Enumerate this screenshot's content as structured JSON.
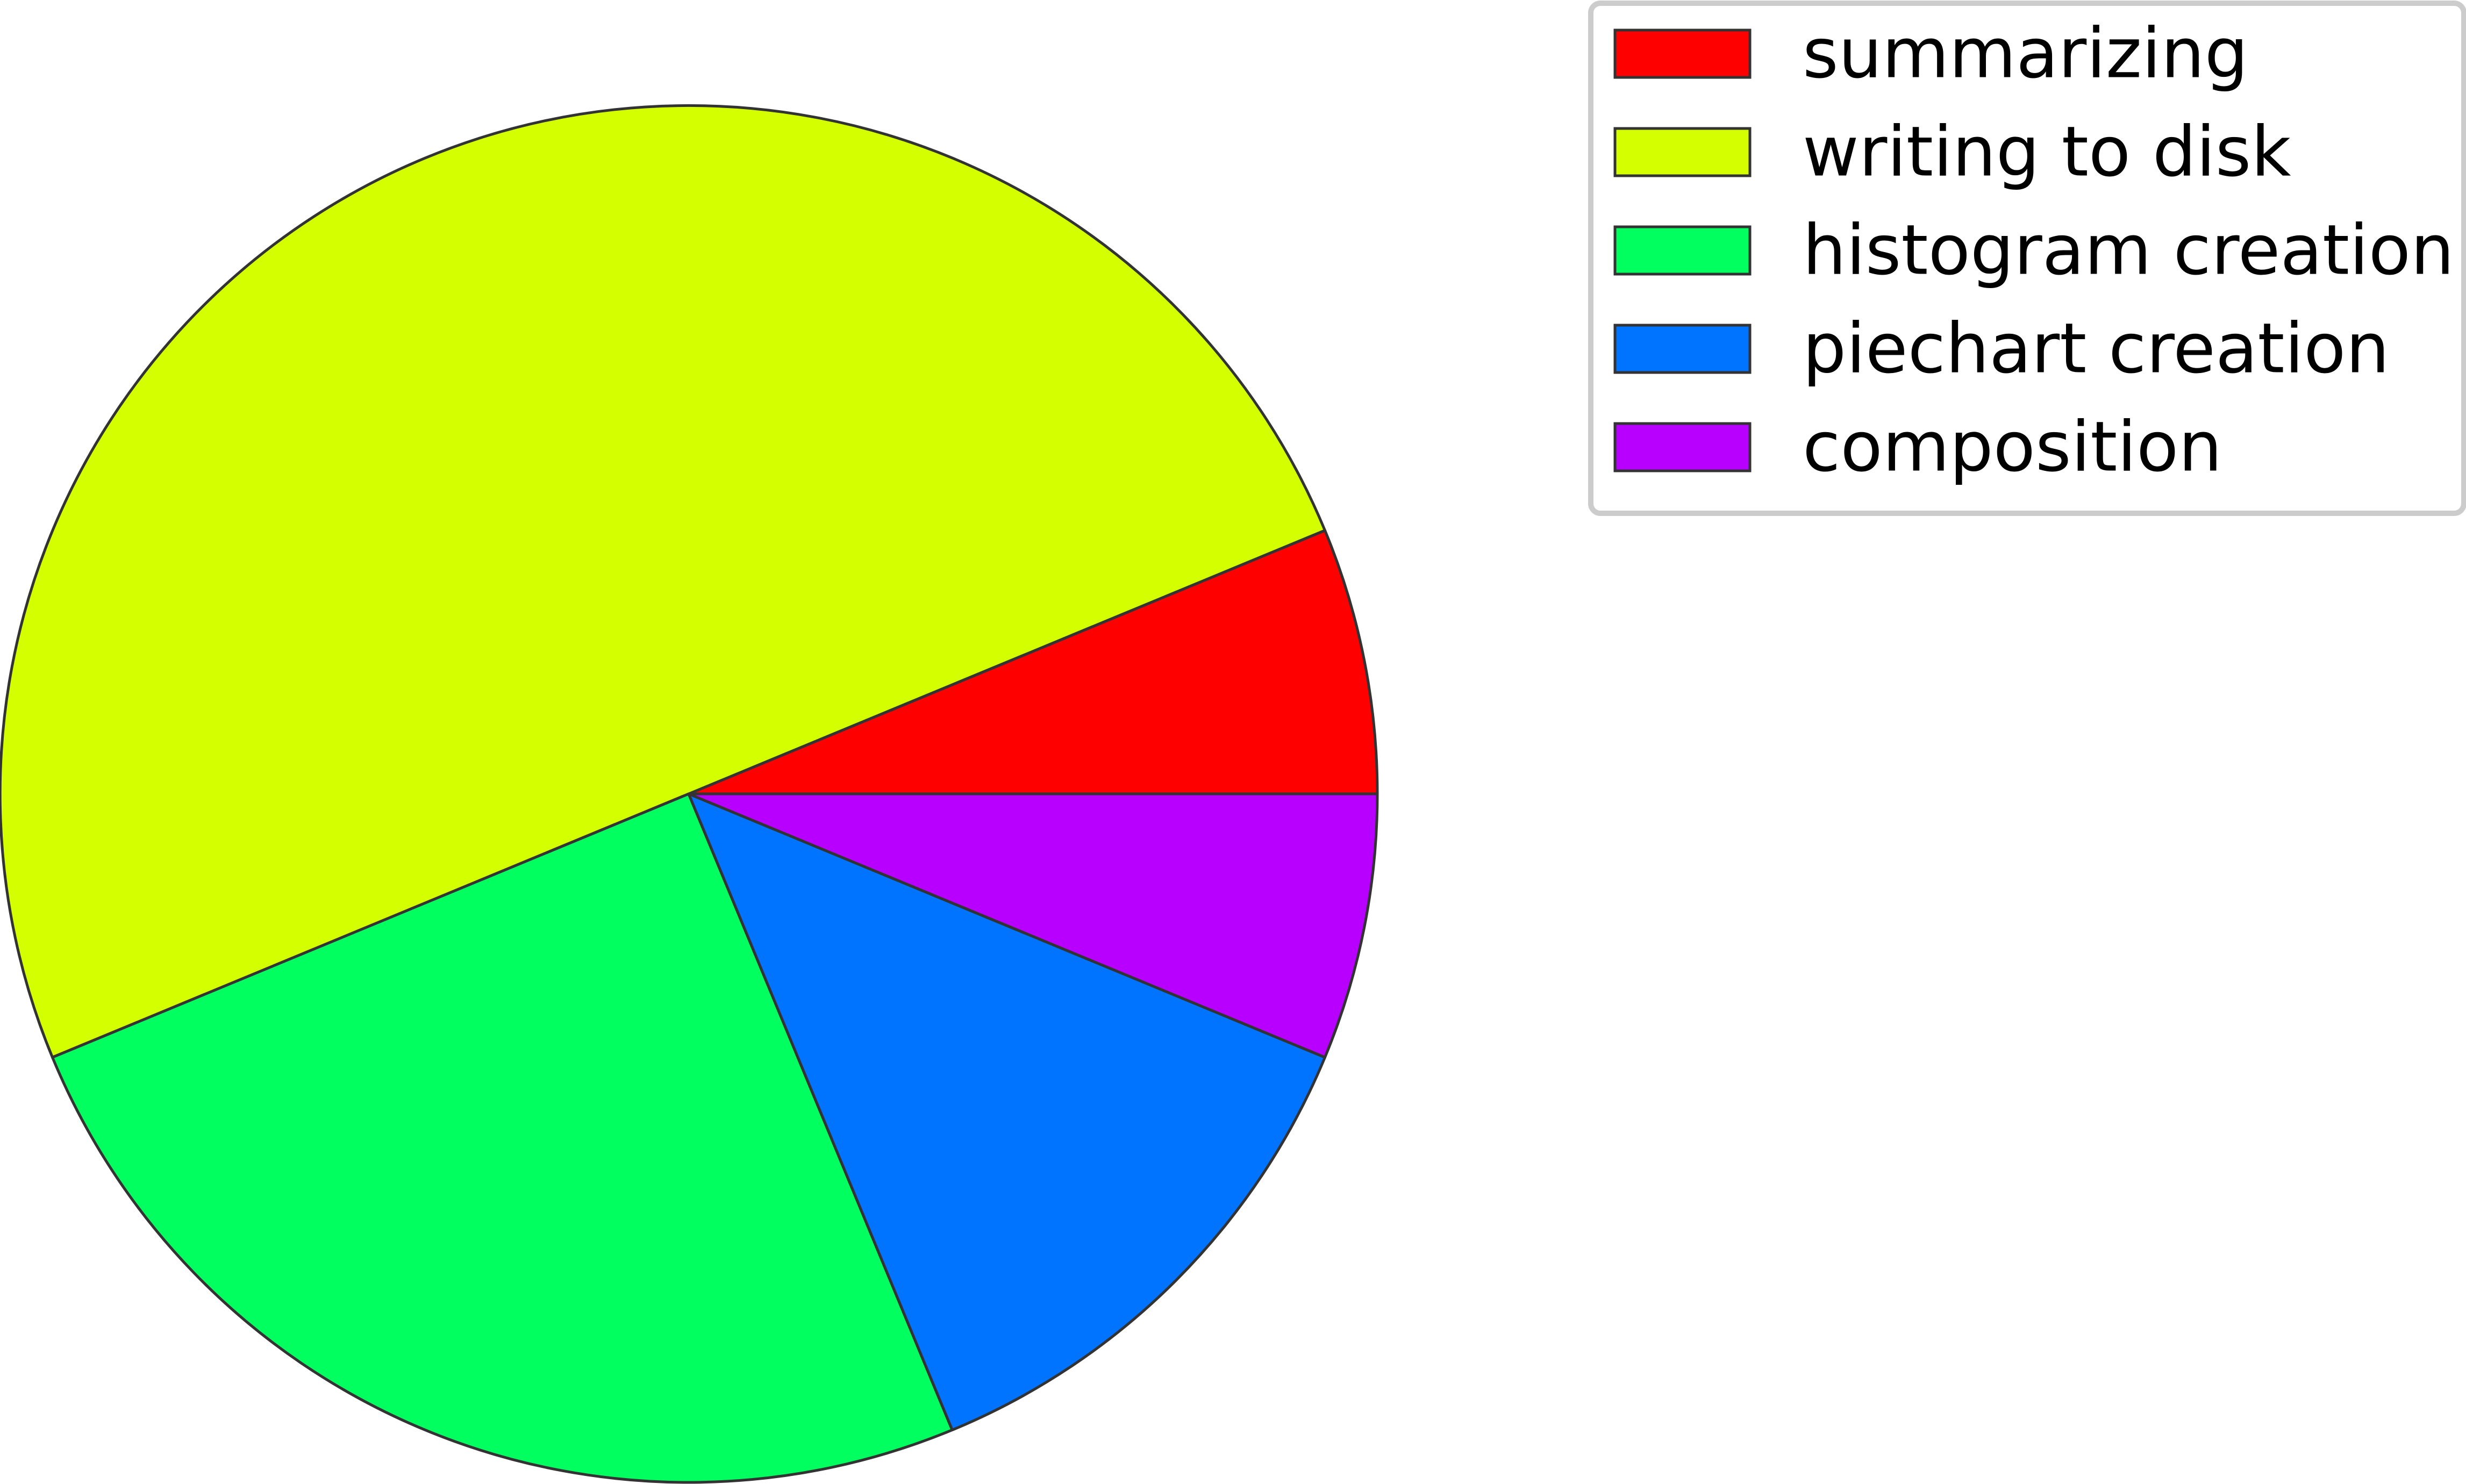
{
  "chart_data": {
    "type": "pie",
    "title": "",
    "start_angle_deg": 0,
    "direction": "counterclockwise",
    "legend": "top-right",
    "slices": [
      {
        "label": "summarizing",
        "value": 6.25,
        "color": "#ff0000"
      },
      {
        "label": "writing to disk",
        "value": 50.0,
        "color": "#d4ff00"
      },
      {
        "label": "histogram creation",
        "value": 25.0,
        "color": "#00ff5f"
      },
      {
        "label": "piechart creation",
        "value": 12.5,
        "color": "#0073ff"
      },
      {
        "label": "composition",
        "value": 6.25,
        "color": "#b700ff"
      }
    ]
  }
}
